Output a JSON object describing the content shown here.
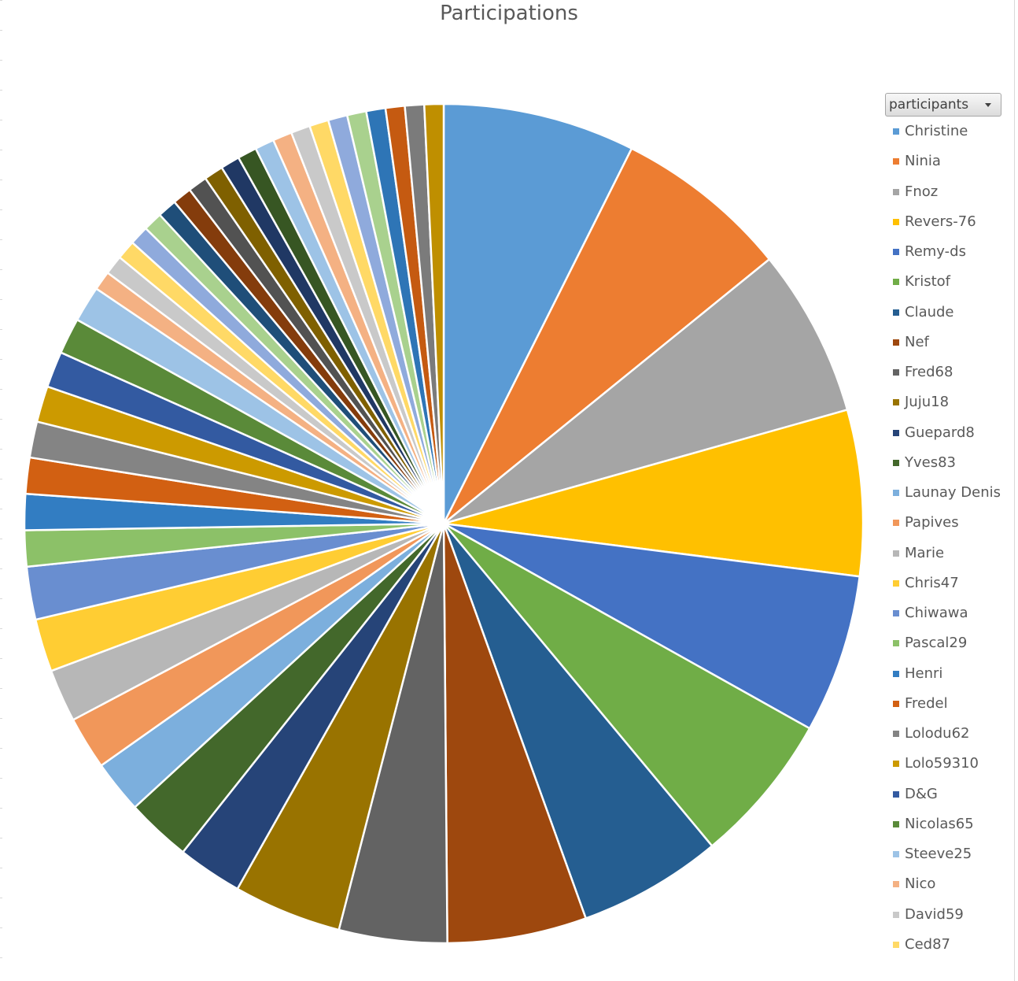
{
  "chart_data": {
    "type": "pie",
    "title": "Participations",
    "legend_field": "participants",
    "legend_position": "right",
    "slices": [
      {
        "name": "Christine",
        "value": 8.0,
        "color": "#5B9BD5"
      },
      {
        "name": "Ninia",
        "value": 7.3,
        "color": "#ED7D31"
      },
      {
        "name": "Fnoz",
        "value": 7.0,
        "color": "#A5A5A5"
      },
      {
        "name": "Revers-76",
        "value": 6.9,
        "color": "#FFC000"
      },
      {
        "name": "Remy-ds",
        "value": 6.6,
        "color": "#4472C4"
      },
      {
        "name": "Kristof",
        "value": 6.3,
        "color": "#70AD47"
      },
      {
        "name": "Claude",
        "value": 6.0,
        "color": "#255E91"
      },
      {
        "name": "Nef",
        "value": 5.8,
        "color": "#9E480E"
      },
      {
        "name": "Fred68",
        "value": 4.5,
        "color": "#636363"
      },
      {
        "name": "Juju18",
        "value": 4.5,
        "color": "#997300"
      },
      {
        "name": "Guepard8",
        "value": 2.7,
        "color": "#264478"
      },
      {
        "name": "Yves83",
        "value": 2.7,
        "color": "#43682B"
      },
      {
        "name": "Launay Denis",
        "value": 2.2,
        "color": "#7CAFDD"
      },
      {
        "name": "Papives",
        "value": 2.2,
        "color": "#F1975A"
      },
      {
        "name": "Marie",
        "value": 2.2,
        "color": "#B7B7B7"
      },
      {
        "name": "Chris47",
        "value": 2.2,
        "color": "#FFCD33"
      },
      {
        "name": "Chiwawa",
        "value": 2.2,
        "color": "#698ED0"
      },
      {
        "name": "Pascal29",
        "value": 1.5,
        "color": "#8CC168"
      },
      {
        "name": "Henri",
        "value": 1.5,
        "color": "#327DC2"
      },
      {
        "name": "Fredel",
        "value": 1.5,
        "color": "#D26012"
      },
      {
        "name": "Lolodu62",
        "value": 1.5,
        "color": "#848484"
      },
      {
        "name": "Lolo59310",
        "value": 1.5,
        "color": "#CC9A00"
      },
      {
        "name": "D&G",
        "value": 1.5,
        "color": "#335AA1"
      },
      {
        "name": "Nicolas65",
        "value": 1.5,
        "color": "#5A8A39"
      },
      {
        "name": "Steeve25",
        "value": 1.5,
        "color": "#9DC3E6"
      },
      {
        "name": "Nico",
        "value": 0.8,
        "color": "#F4B183"
      },
      {
        "name": "David59",
        "value": 0.8,
        "color": "#C9C9C9"
      },
      {
        "name": "Ced87",
        "value": 0.8,
        "color": "#FFD966"
      },
      {
        "name": "",
        "value": 0.8,
        "color": "#8FAADC"
      },
      {
        "name": "",
        "value": 0.8,
        "color": "#A9D18E"
      },
      {
        "name": "",
        "value": 0.8,
        "color": "#1F4E79"
      },
      {
        "name": "",
        "value": 0.8,
        "color": "#843C0C"
      },
      {
        "name": "",
        "value": 0.8,
        "color": "#525252"
      },
      {
        "name": "",
        "value": 0.8,
        "color": "#7F6000"
      },
      {
        "name": "",
        "value": 0.8,
        "color": "#203864"
      },
      {
        "name": "",
        "value": 0.8,
        "color": "#375623"
      },
      {
        "name": "",
        "value": 0.8,
        "color": "#9DC3E6"
      },
      {
        "name": "",
        "value": 0.8,
        "color": "#F4B183"
      },
      {
        "name": "",
        "value": 0.8,
        "color": "#C9C9C9"
      },
      {
        "name": "",
        "value": 0.8,
        "color": "#FFD966"
      },
      {
        "name": "",
        "value": 0.8,
        "color": "#8FAADC"
      },
      {
        "name": "",
        "value": 0.8,
        "color": "#A9D18E"
      },
      {
        "name": "",
        "value": 0.8,
        "color": "#2E75B6"
      },
      {
        "name": "",
        "value": 0.8,
        "color": "#C55A11"
      },
      {
        "name": "",
        "value": 0.8,
        "color": "#7B7B7B"
      },
      {
        "name": "",
        "value": 0.8,
        "color": "#BF8F00"
      }
    ]
  }
}
